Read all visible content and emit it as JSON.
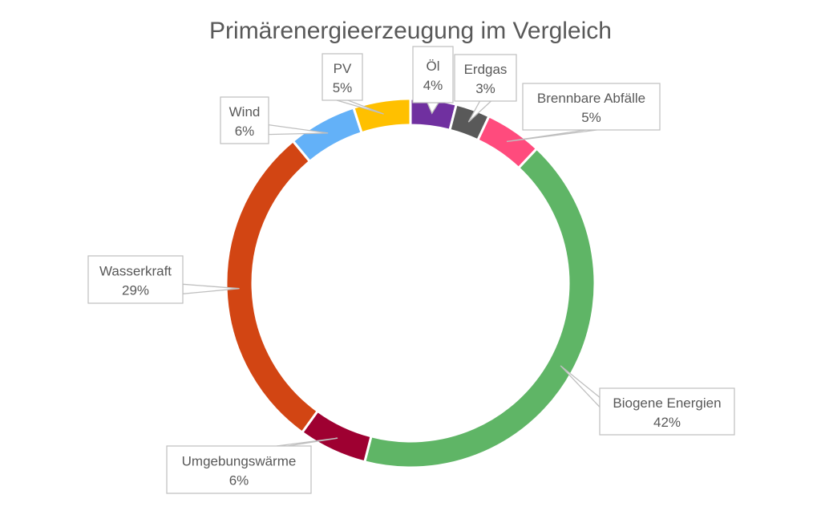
{
  "chart_data": {
    "type": "pie",
    "variant": "doughnut",
    "title": "Primärenergieerzeugung im Vergleich",
    "legend": "none",
    "start_angle_deg": 0,
    "slices": [
      {
        "name": "Öl",
        "value": 4,
        "percent_label": "4%",
        "color": "#7030A0"
      },
      {
        "name": "Erdgas",
        "value": 3,
        "percent_label": "3%",
        "color": "#595959"
      },
      {
        "name": "Brennbare Abfälle",
        "value": 5,
        "percent_label": "5%",
        "color": "#FF4B7D"
      },
      {
        "name": "Biogene Energien",
        "value": 42,
        "percent_label": "42%",
        "color": "#5FB566"
      },
      {
        "name": "Umgebungswärme",
        "value": 6,
        "percent_label": "6%",
        "color": "#9E0031"
      },
      {
        "name": "Wasserkraft",
        "value": 29,
        "percent_label": "29%",
        "color": "#D24513"
      },
      {
        "name": "Wind",
        "value": 6,
        "percent_label": "6%",
        "color": "#63B1F8"
      },
      {
        "name": "PV",
        "value": 5,
        "percent_label": "5%",
        "color": "#FFC000"
      }
    ]
  }
}
